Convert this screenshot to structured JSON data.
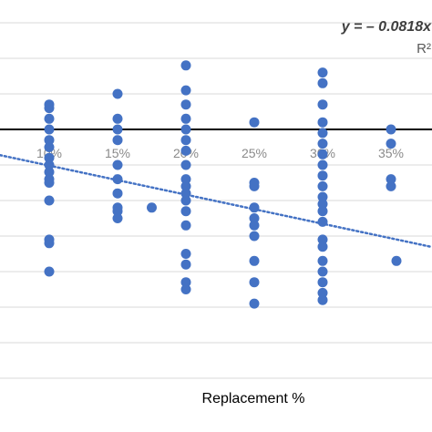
{
  "chart_data": {
    "type": "scatter",
    "title": "",
    "xlabel": "Replacement %",
    "ylabel": "",
    "x_ticks": [
      "10%",
      "15%",
      "20%",
      "25%",
      "30%",
      "35%"
    ],
    "x_tick_values": [
      10,
      15,
      20,
      25,
      30,
      35
    ],
    "xlim": [
      0,
      40
    ],
    "ylim": [
      -7.5,
      3.5
    ],
    "grid": "horizontal",
    "gridlines_y": [
      3,
      2,
      1,
      -1,
      -2,
      -3,
      -4,
      -5,
      -6,
      -7
    ],
    "zero_line_y": 0,
    "colors": {
      "points": "#4472c4",
      "trendline": "#4472c4",
      "zero_line": "#000000",
      "grid": "#d9d9d9"
    },
    "trendline": {
      "style": "dotted",
      "slope": -0.0818,
      "intercept": -0.2
    },
    "annotations": {
      "equation": "y = – 0.0818x",
      "r_squared": "R²"
    },
    "points": [
      {
        "x": 10,
        "y": 0.7
      },
      {
        "x": 10,
        "y": 0.6
      },
      {
        "x": 10,
        "y": 0.3
      },
      {
        "x": 10,
        "y": 0
      },
      {
        "x": 10,
        "y": -0.3
      },
      {
        "x": 10,
        "y": -0.5
      },
      {
        "x": 10,
        "y": -0.8
      },
      {
        "x": 10,
        "y": -1.0
      },
      {
        "x": 10,
        "y": -1.2
      },
      {
        "x": 10,
        "y": -1.4
      },
      {
        "x": 10,
        "y": -1.5
      },
      {
        "x": 10,
        "y": -2.0
      },
      {
        "x": 10,
        "y": -3.1
      },
      {
        "x": 10,
        "y": -3.2
      },
      {
        "x": 10,
        "y": -4.0
      },
      {
        "x": 15,
        "y": 1.0
      },
      {
        "x": 15,
        "y": 0.3
      },
      {
        "x": 15,
        "y": 0
      },
      {
        "x": 15,
        "y": -0.3
      },
      {
        "x": 15,
        "y": -1.0
      },
      {
        "x": 15,
        "y": -1.4
      },
      {
        "x": 15,
        "y": -1.8
      },
      {
        "x": 15,
        "y": -2.2
      },
      {
        "x": 15,
        "y": -2.3
      },
      {
        "x": 15,
        "y": -2.5
      },
      {
        "x": 17.5,
        "y": -2.2
      },
      {
        "x": 20,
        "y": 1.8
      },
      {
        "x": 20,
        "y": 1.1
      },
      {
        "x": 20,
        "y": 0.7
      },
      {
        "x": 20,
        "y": 0.3
      },
      {
        "x": 20,
        "y": 0
      },
      {
        "x": 20,
        "y": -0.3
      },
      {
        "x": 20,
        "y": -0.6
      },
      {
        "x": 20,
        "y": -1.0
      },
      {
        "x": 20,
        "y": -1.4
      },
      {
        "x": 20,
        "y": -1.6
      },
      {
        "x": 20,
        "y": -1.8
      },
      {
        "x": 20,
        "y": -2.0
      },
      {
        "x": 20,
        "y": -2.3
      },
      {
        "x": 20,
        "y": -2.7
      },
      {
        "x": 20,
        "y": -3.5
      },
      {
        "x": 20,
        "y": -3.8
      },
      {
        "x": 20,
        "y": -4.3
      },
      {
        "x": 20,
        "y": -4.5
      },
      {
        "x": 25,
        "y": 0.2
      },
      {
        "x": 25,
        "y": -1.5
      },
      {
        "x": 25,
        "y": -1.6
      },
      {
        "x": 25,
        "y": -2.2
      },
      {
        "x": 25,
        "y": -2.5
      },
      {
        "x": 25,
        "y": -2.7
      },
      {
        "x": 25,
        "y": -3.0
      },
      {
        "x": 25,
        "y": -3.7
      },
      {
        "x": 25,
        "y": -4.3
      },
      {
        "x": 25,
        "y": -4.9
      },
      {
        "x": 30,
        "y": 1.6
      },
      {
        "x": 30,
        "y": 1.3
      },
      {
        "x": 30,
        "y": 0.7
      },
      {
        "x": 30,
        "y": 0.2
      },
      {
        "x": 30,
        "y": -0.1
      },
      {
        "x": 30,
        "y": -0.4
      },
      {
        "x": 30,
        "y": -0.7
      },
      {
        "x": 30,
        "y": -1.0
      },
      {
        "x": 30,
        "y": -1.3
      },
      {
        "x": 30,
        "y": -1.6
      },
      {
        "x": 30,
        "y": -1.9
      },
      {
        "x": 30,
        "y": -2.1
      },
      {
        "x": 30,
        "y": -2.3
      },
      {
        "x": 30,
        "y": -2.6
      },
      {
        "x": 30,
        "y": -3.1
      },
      {
        "x": 30,
        "y": -3.3
      },
      {
        "x": 30,
        "y": -3.7
      },
      {
        "x": 30,
        "y": -4.0
      },
      {
        "x": 30,
        "y": -4.3
      },
      {
        "x": 30,
        "y": -4.6
      },
      {
        "x": 30,
        "y": -4.8
      },
      {
        "x": 35,
        "y": 0
      },
      {
        "x": 35,
        "y": -0.4
      },
      {
        "x": 35,
        "y": -1.4
      },
      {
        "x": 35,
        "y": -1.6
      },
      {
        "x": 35.4,
        "y": -3.7
      }
    ]
  }
}
